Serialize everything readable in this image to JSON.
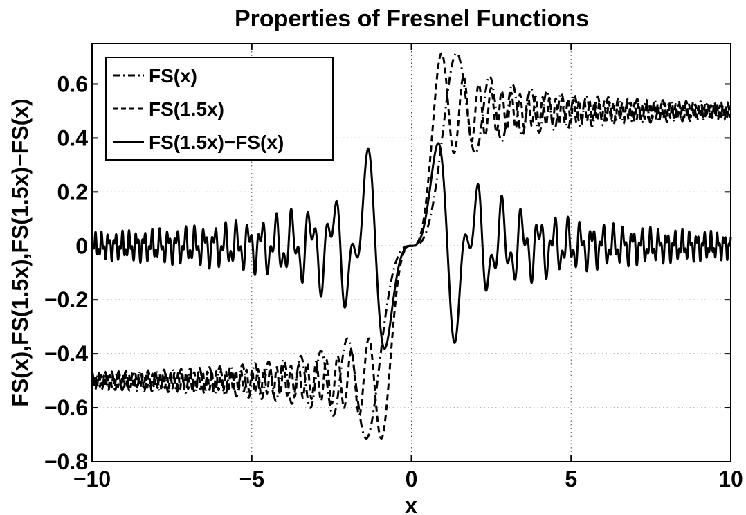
{
  "chart_data": {
    "type": "line",
    "title": "Properties of Fresnel Functions",
    "xlabel": "x",
    "ylabel": "FS(x),FS(1.5x),FS(1.5x)−FS(x)",
    "xlim": [
      -10,
      10
    ],
    "ylim": [
      -0.8,
      0.75
    ],
    "xticks": [
      -10,
      -5,
      0,
      5,
      10
    ],
    "xtick_labels": [
      "−10",
      "−5",
      "0",
      "5",
      "10"
    ],
    "yticks": [
      -0.8,
      -0.6,
      -0.4,
      -0.2,
      0,
      0.2,
      0.4,
      0.6
    ],
    "ytick_labels": [
      "−0.8",
      "−0.6",
      "−0.4",
      "−0.2",
      "0",
      "0.2",
      "0.4",
      "0.6"
    ],
    "grid": true,
    "legend_position": "top-left",
    "series": [
      {
        "name": "FS(x)",
        "style": "dashdot",
        "function": "S(x)",
        "color": "#000000"
      },
      {
        "name": "FS(1.5x)",
        "style": "dashed",
        "function": "S(1.5x)",
        "color": "#000000"
      },
      {
        "name": "FS(1.5x)−FS(x)",
        "style": "solid",
        "function": "S(1.5x)-S(x)",
        "color": "#000000"
      }
    ],
    "x_range": [
      -10,
      10
    ],
    "sample_count": 4000
  }
}
